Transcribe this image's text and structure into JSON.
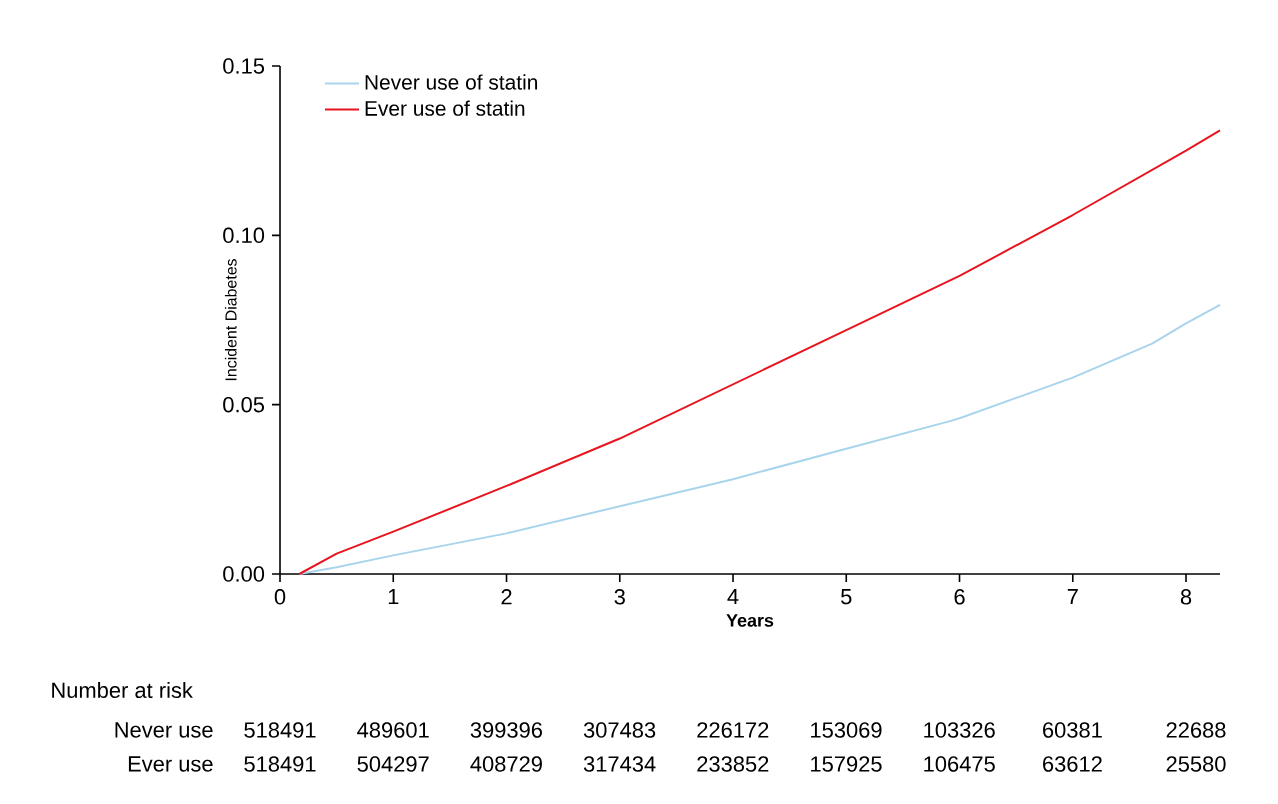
{
  "chart_data": {
    "type": "line",
    "xlabel": "Years",
    "ylabel": "Incident Diabetes",
    "xlim": [
      0,
      8.3
    ],
    "ylim": [
      0,
      0.15
    ],
    "xticks": [
      0,
      1,
      2,
      3,
      4,
      5,
      6,
      7,
      8
    ],
    "yticks": [
      {
        "value": 0,
        "label": "0.00"
      },
      {
        "value": 0.05,
        "label": "0.05"
      },
      {
        "value": 0.1,
        "label": "0.10"
      },
      {
        "value": 0.15,
        "label": "0.15"
      }
    ],
    "grid": false,
    "legend": "top left",
    "marker": "none",
    "line_style": "solid",
    "series": [
      {
        "name": "Never use of statin",
        "color": "#a8d4ec",
        "x": [
          0.17,
          0.5,
          1,
          2,
          3,
          4,
          5,
          5.9,
          6,
          7,
          7.7,
          8,
          8.3
        ],
        "values": [
          0,
          0.002,
          0.0055,
          0.012,
          0.02,
          0.028,
          0.037,
          0.045,
          0.046,
          0.058,
          0.068,
          0.074,
          0.0795
        ]
      },
      {
        "name": "Ever use of statin",
        "color": "#e8141e",
        "x": [
          0.17,
          0.5,
          1,
          2,
          3,
          4,
          5,
          6,
          7,
          8,
          8.3
        ],
        "values": [
          0,
          0.006,
          0.0125,
          0.026,
          0.04,
          0.056,
          0.072,
          0.088,
          0.106,
          0.125,
          0.131
        ]
      }
    ],
    "annotations": [
      "Number at risk",
      "Never use",
      "518491",
      "489601",
      "399396",
      "307483",
      "226172",
      "153069",
      "103326",
      "60381",
      "22688",
      "Ever use",
      "518491",
      "504297",
      "408729",
      "317434",
      "233852",
      "157925",
      "106475",
      "63612",
      "25580"
    ]
  }
}
